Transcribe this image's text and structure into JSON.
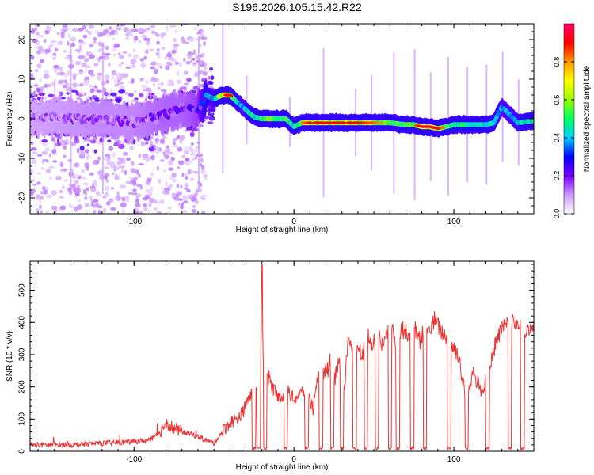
{
  "title": "S196.2026.105.15.42.R22",
  "chart_data": [
    {
      "type": "heatmap",
      "name": "spectrogram",
      "xlabel": "Height of straight line (km)",
      "ylabel": "Frequency (Hz)",
      "xlim": [
        -165,
        150
      ],
      "ylim": [
        -24,
        24
      ],
      "xticks": [
        -100,
        0,
        100
      ],
      "yticks": [
        20,
        10,
        0,
        -10,
        -20
      ],
      "xtick_labels": [
        "-100",
        "0",
        "100"
      ],
      "ytick_labels": [
        "20",
        "10",
        "0",
        "-10",
        "-20"
      ],
      "colorbar": {
        "label": "Normalized spectral amplitude",
        "range": [
          0,
          1
        ],
        "ticks": [
          0.0,
          0.2,
          0.4,
          0.6,
          0.8
        ],
        "tick_labels": [
          "0.0",
          "0.2",
          "0.4",
          "0.6",
          "0.8"
        ],
        "colors": [
          "#ffffff",
          "#cc99ff",
          "#7a00ff",
          "#0000ff",
          "#00ccff",
          "#00ff66",
          "#99ff00",
          "#ffff00",
          "#ff9900",
          "#ff0000",
          "#ff0066"
        ]
      },
      "ridge": {
        "x": [
          -165,
          -120,
          -100,
          -80,
          -70,
          -60,
          -55,
          -50,
          -45,
          -40,
          -35,
          -32,
          -28,
          -25,
          -20,
          -15,
          -10,
          -5,
          0,
          5,
          10,
          20,
          30,
          40,
          50,
          60,
          70,
          75,
          80,
          85,
          90,
          95,
          100,
          110,
          120,
          125,
          130,
          140,
          150
        ],
        "y": [
          0.5,
          0,
          -1,
          1,
          3,
          2,
          6,
          5,
          6,
          6,
          4,
          3,
          1.5,
          0.5,
          0,
          0,
          0,
          0,
          -2,
          -1,
          -1,
          -1,
          -1,
          -1,
          -1,
          -1,
          -1.5,
          -1.5,
          -2,
          -2,
          -2.5,
          -2,
          -1.5,
          -1.5,
          -1.5,
          -1,
          3,
          -1,
          -0.5
        ],
        "amplitude": [
          0.2,
          0.25,
          0.25,
          0.3,
          0.3,
          0.35,
          0.6,
          0.5,
          0.9,
          0.9,
          0.6,
          0.5,
          0.6,
          0.6,
          0.7,
          0.75,
          0.7,
          0.7,
          0.6,
          0.75,
          0.85,
          0.85,
          0.85,
          0.85,
          0.8,
          0.7,
          0.7,
          0.75,
          0.9,
          0.85,
          0.9,
          0.7,
          0.65,
          0.6,
          0.6,
          0.6,
          0.5,
          0.55,
          0.6
        ]
      }
    },
    {
      "type": "line",
      "name": "snr",
      "xlabel": "Height of straight line (km)",
      "ylabel": "SNR (10 * v/v)",
      "xlim": [
        -165,
        150
      ],
      "ylim": [
        0,
        590
      ],
      "xticks": [
        -100,
        0,
        100
      ],
      "yticks": [
        0,
        100,
        200,
        300,
        400,
        500
      ],
      "xtick_labels": [
        "-100",
        "0",
        "100"
      ],
      "ytick_labels": [
        "0",
        "100",
        "200",
        "300",
        "400",
        "500"
      ],
      "series": [
        {
          "name": "SNR",
          "color": "#ee3333",
          "x": [
            -165,
            -140,
            -120,
            -100,
            -90,
            -85,
            -80,
            -75,
            -70,
            -65,
            -60,
            -55,
            -50,
            -45,
            -40,
            -36,
            -32,
            -28,
            -25,
            -21,
            -20,
            -19,
            -18,
            -16,
            -12,
            -8,
            -4,
            0,
            4,
            8,
            12,
            15,
            18,
            22,
            25,
            28,
            31,
            34,
            37,
            40,
            43,
            46,
            49,
            52,
            55,
            58,
            61,
            64,
            67,
            70,
            73,
            76,
            79,
            82,
            85,
            88,
            91,
            94,
            97,
            100,
            103,
            106,
            109,
            112,
            115,
            118,
            121,
            124,
            127,
            130,
            133,
            136,
            139,
            142,
            145,
            150
          ],
          "y": [
            20,
            20,
            25,
            30,
            35,
            50,
            90,
            70,
            60,
            55,
            45,
            35,
            25,
            60,
            90,
            100,
            120,
            170,
            180,
            200,
            580,
            200,
            200,
            230,
            180,
            170,
            190,
            160,
            180,
            190,
            130,
            220,
            230,
            260,
            210,
            290,
            160,
            360,
            320,
            330,
            300,
            360,
            320,
            370,
            330,
            360,
            380,
            330,
            380,
            370,
            360,
            380,
            340,
            390,
            370,
            410,
            380,
            360,
            340,
            320,
            300,
            200,
            180,
            250,
            210,
            180,
            240,
            300,
            350,
            380,
            390,
            400,
            390,
            380,
            370,
            380
          ],
          "dropouts_x": [
            -25,
            -22,
            -18,
            -5,
            8,
            17,
            24,
            30,
            38,
            45,
            52,
            60,
            65,
            74,
            82,
            97,
            108,
            121,
            135,
            143
          ]
        }
      ]
    }
  ]
}
